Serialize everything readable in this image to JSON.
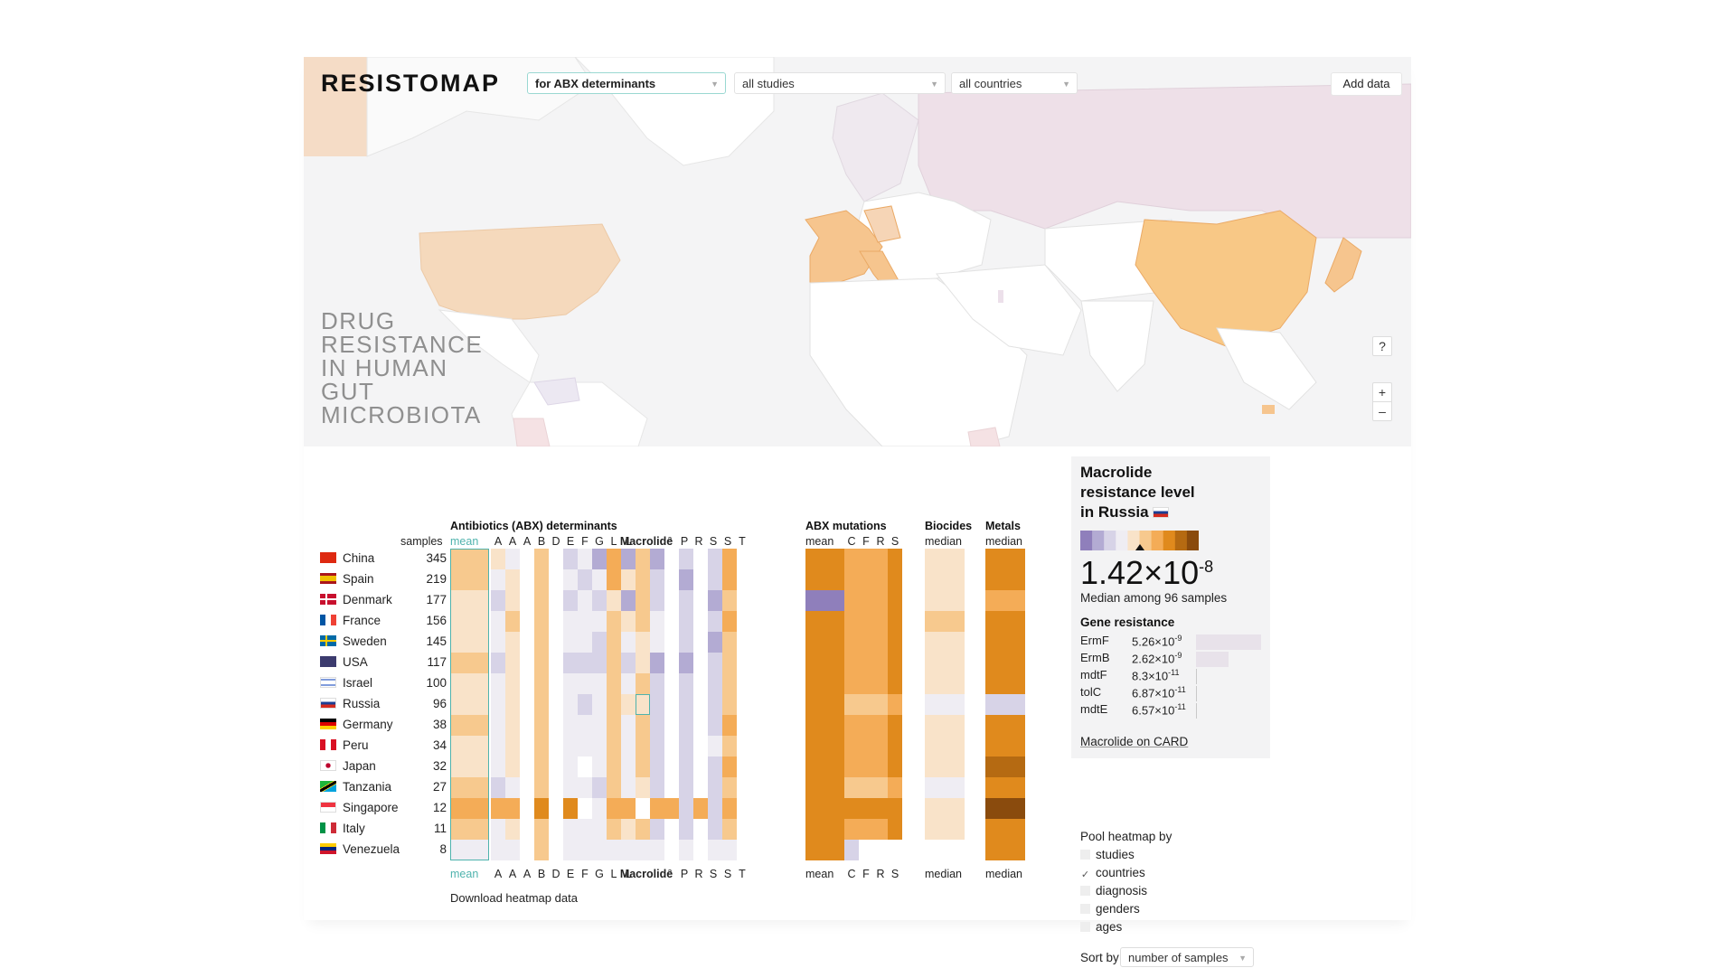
{
  "app": {
    "logo": "RESISTOMAP",
    "tagline": [
      "DRUG",
      "RESISTANCE",
      "IN HUMAN",
      "GUT",
      "MICROBIOTA"
    ]
  },
  "filters": {
    "determinants": "for ABX determinants",
    "studies": "all studies",
    "countries": "all countries",
    "add_data": "Add data"
  },
  "map_controls": {
    "help": "?",
    "zoom_in": "+",
    "zoom_out": "–"
  },
  "colors": {
    "accent_teal": "#4fb3ad",
    "scale": [
      "#6a4fa0",
      "#8f7fbb",
      "#b3abd3",
      "#d7d3e7",
      "#efedf3",
      "#f9e3c9",
      "#f7c98e",
      "#f4ac57",
      "#e08a1d",
      "#b56a12",
      "#8a4b0d"
    ]
  },
  "heatmap": {
    "group_headers": {
      "abx": "Antibiotics (ABX) determinants",
      "mutations": "ABX mutations",
      "biocides": "Biocides",
      "metals": "Metals"
    },
    "samples_label": "samples",
    "abx_columns": [
      "mean",
      "A",
      "A",
      "A",
      "B",
      "D",
      "E",
      "F",
      "G",
      "L",
      "L",
      "Macrolide",
      "³",
      "P",
      "R",
      "S",
      "S",
      "T"
    ],
    "mutation_columns": [
      "mean",
      "C",
      "F",
      "R",
      "S"
    ],
    "biocides_column": "median",
    "metals_column": "median",
    "rows": [
      {
        "country": "China",
        "flag": "cn",
        "samples": "345",
        "cells": [
          6,
          5,
          4,
          0,
          6,
          0,
          3,
          4,
          2,
          7,
          2,
          6,
          2,
          0,
          3,
          0,
          3,
          7,
          8,
          7,
          7,
          7,
          8,
          5,
          8,
          9
        ]
      },
      {
        "country": "Spain",
        "flag": "es",
        "samples": "219",
        "cells": [
          6,
          4,
          5,
          0,
          6,
          0,
          4,
          3,
          4,
          7,
          5,
          6,
          3,
          0,
          2,
          0,
          3,
          7,
          8,
          7,
          7,
          7,
          8,
          5,
          8,
          8
        ]
      },
      {
        "country": "Denmark",
        "flag": "dk",
        "samples": "177",
        "cells": [
          5,
          3,
          5,
          0,
          6,
          0,
          3,
          4,
          3,
          5,
          2,
          6,
          3,
          0,
          3,
          0,
          2,
          6,
          1,
          7,
          7,
          7,
          8,
          5,
          7,
          8
        ]
      },
      {
        "country": "France",
        "flag": "fr",
        "samples": "156",
        "cells": [
          5,
          4,
          6,
          0,
          6,
          0,
          4,
          4,
          4,
          6,
          5,
          6,
          4,
          0,
          3,
          0,
          3,
          7,
          8,
          7,
          7,
          7,
          8,
          6,
          8,
          9
        ]
      },
      {
        "country": "Sweden",
        "flag": "se",
        "samples": "145",
        "cells": [
          5,
          4,
          5,
          0,
          6,
          0,
          4,
          4,
          3,
          6,
          4,
          5,
          4,
          0,
          3,
          0,
          2,
          6,
          8,
          7,
          7,
          7,
          8,
          5,
          8,
          9
        ]
      },
      {
        "country": "USA",
        "flag": "us",
        "samples": "117",
        "cells": [
          6,
          3,
          5,
          0,
          6,
          0,
          3,
          3,
          3,
          6,
          3,
          5,
          2,
          0,
          2,
          0,
          3,
          6,
          8,
          7,
          7,
          7,
          8,
          5,
          8,
          9
        ]
      },
      {
        "country": "Israel",
        "flag": "il",
        "samples": "100",
        "cells": [
          5,
          4,
          5,
          0,
          6,
          0,
          4,
          4,
          4,
          6,
          4,
          6,
          3,
          0,
          3,
          0,
          3,
          6,
          8,
          7,
          7,
          7,
          8,
          5,
          8,
          9
        ]
      },
      {
        "country": "Russia",
        "flag": "ru",
        "samples": "96",
        "cells": [
          5,
          4,
          5,
          0,
          6,
          0,
          4,
          3,
          4,
          6,
          5,
          5,
          3,
          0,
          3,
          0,
          3,
          6,
          8,
          6,
          6,
          6,
          7,
          4,
          3,
          4
        ]
      },
      {
        "country": "Germany",
        "flag": "de",
        "samples": "38",
        "cells": [
          6,
          4,
          5,
          0,
          6,
          0,
          4,
          4,
          4,
          6,
          4,
          6,
          3,
          0,
          3,
          0,
          3,
          7,
          8,
          7,
          7,
          7,
          8,
          5,
          8,
          9
        ]
      },
      {
        "country": "Peru",
        "flag": "pe",
        "samples": "34",
        "cells": [
          5,
          4,
          5,
          0,
          6,
          0,
          4,
          4,
          4,
          6,
          4,
          6,
          3,
          0,
          3,
          0,
          4,
          6,
          8,
          7,
          7,
          7,
          8,
          5,
          8,
          9
        ]
      },
      {
        "country": "Japan",
        "flag": "jp",
        "samples": "32",
        "cells": [
          5,
          4,
          5,
          0,
          6,
          0,
          4,
          0,
          4,
          6,
          4,
          6,
          3,
          0,
          3,
          0,
          3,
          7,
          8,
          7,
          7,
          7,
          8,
          5,
          9,
          10
        ]
      },
      {
        "country": "Tanzania",
        "flag": "tz",
        "samples": "27",
        "cells": [
          6,
          3,
          4,
          0,
          6,
          0,
          4,
          4,
          3,
          6,
          4,
          5,
          3,
          0,
          3,
          0,
          3,
          6,
          8,
          6,
          6,
          6,
          7,
          4,
          8,
          9
        ]
      },
      {
        "country": "Singapore",
        "flag": "sg",
        "samples": "12",
        "cells": [
          7,
          7,
          7,
          0,
          8,
          0,
          8,
          0,
          4,
          7,
          7,
          0,
          7,
          7,
          3,
          7,
          3,
          7,
          8,
          8,
          8,
          8,
          8,
          5,
          10,
          10
        ]
      },
      {
        "country": "Italy",
        "flag": "it",
        "samples": "11",
        "cells": [
          6,
          4,
          5,
          0,
          6,
          0,
          4,
          4,
          4,
          6,
          5,
          6,
          3,
          0,
          3,
          0,
          3,
          6,
          8,
          7,
          7,
          7,
          8,
          5,
          8,
          9
        ]
      },
      {
        "country": "Venezuela",
        "flag": "ve",
        "samples": "8",
        "cells": [
          4,
          4,
          4,
          0,
          6,
          0,
          4,
          4,
          4,
          4,
          4,
          4,
          4,
          0,
          4,
          0,
          4,
          4,
          8,
          3,
          0,
          0,
          0,
          0,
          8,
          8
        ]
      }
    ],
    "download": "Download heatmap data"
  },
  "detail": {
    "title_lines": [
      "Macrolide",
      "resistance level",
      "in Russia"
    ],
    "value_mantissa": "1.42×10",
    "value_exponent": "-8",
    "median_text": "Median among 96 samples",
    "gene_title": "Gene resistance",
    "genes": [
      {
        "name": "ErmF",
        "value": "5.26×10",
        "exp": "-9",
        "bar": 1.0
      },
      {
        "name": "ErmB",
        "value": "2.62×10",
        "exp": "-9",
        "bar": 0.5
      },
      {
        "name": "mdtF",
        "value": "8.3×10",
        "exp": "-11",
        "bar": 0.016
      },
      {
        "name": "tolC",
        "value": "6.87×10",
        "exp": "-11",
        "bar": 0.013
      },
      {
        "name": "mdtE",
        "value": "6.57×10",
        "exp": "-11",
        "bar": 0.012
      }
    ],
    "card_link": "Macrolide on CARD"
  },
  "pool": {
    "label": "Pool heatmap by",
    "options": [
      {
        "label": "studies",
        "checked": false
      },
      {
        "label": "countries",
        "checked": true
      },
      {
        "label": "diagnosis",
        "checked": false
      },
      {
        "label": "genders",
        "checked": false
      },
      {
        "label": "ages",
        "checked": false
      }
    ],
    "sort_label": "Sort by",
    "sort_value": "number of samples"
  }
}
